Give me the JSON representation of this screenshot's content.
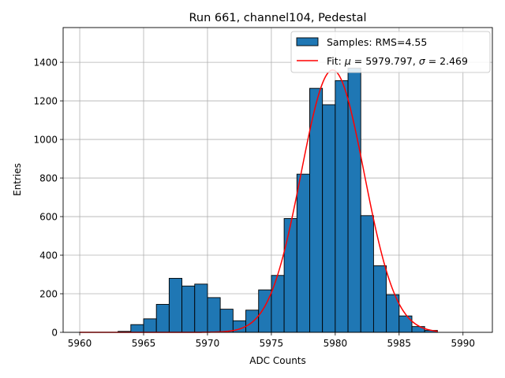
{
  "chart_data": {
    "type": "bar",
    "title": "Run 661, channel104, Pedestal",
    "xlabel": "ADC Counts",
    "ylabel": "Entries",
    "xlim": [
      5958.7,
      5992.3
    ],
    "ylim": [
      0,
      1580
    ],
    "xticks": [
      5960,
      5965,
      5970,
      5975,
      5980,
      5985,
      5990
    ],
    "yticks": [
      0,
      200,
      400,
      600,
      800,
      1000,
      1200,
      1400
    ],
    "grid": true,
    "legend_position": "top-right",
    "bin_width": 1,
    "histogram": {
      "name": "Samples: RMS=4.55",
      "color": "#1f77b4",
      "edge_color": "#000000",
      "bin_lefts": [
        5963,
        5964,
        5965,
        5966,
        5967,
        5968,
        5969,
        5970,
        5971,
        5972,
        5973,
        5974,
        5975,
        5976,
        5977,
        5978,
        5979,
        5980,
        5981,
        5982,
        5983,
        5984,
        5985,
        5986,
        5987
      ],
      "counts": [
        5,
        40,
        70,
        145,
        280,
        240,
        250,
        180,
        120,
        60,
        115,
        220,
        295,
        590,
        820,
        1265,
        1180,
        1305,
        1370,
        605,
        345,
        195,
        85,
        30,
        10
      ]
    },
    "fit": {
      "name": "Fit: μ = 5979.797, σ = 2.469",
      "name_parts": {
        "prefix": "Fit: ",
        "mu": "μ",
        "mu_text": " = 5979.797, ",
        "sigma": "σ",
        "sigma_text": " = 2.469"
      },
      "color": "#ff0000",
      "mu": 5979.797,
      "sigma": 2.469,
      "amplitude": 1360,
      "x_range": [
        5960,
        5988
      ]
    }
  }
}
